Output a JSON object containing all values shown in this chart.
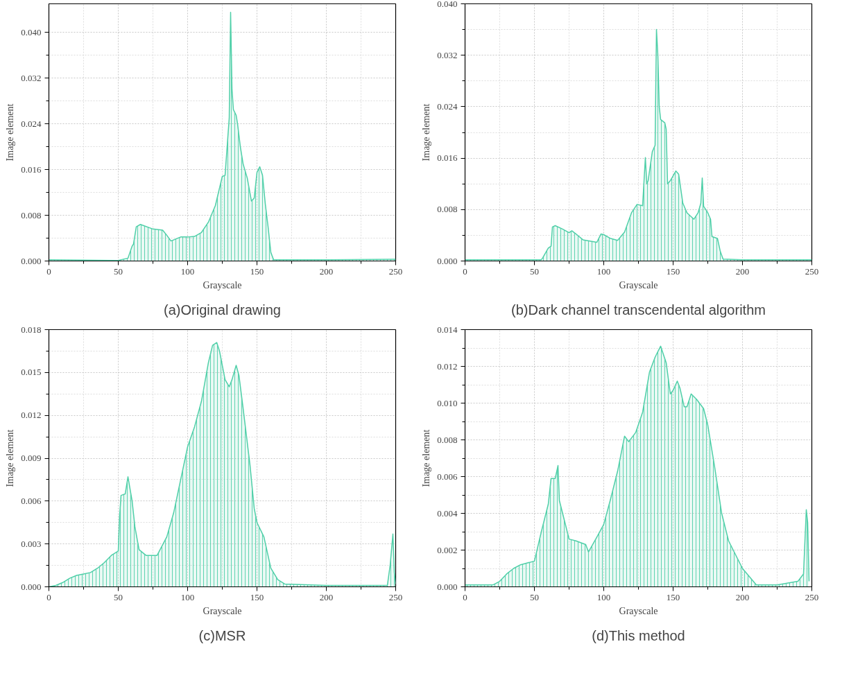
{
  "chart_data": [
    {
      "type": "area",
      "title": "(a)Original drawing",
      "xlabel": "Grayscale",
      "ylabel": "Image element",
      "color": "#4fcfa8",
      "grid": true,
      "xlim": [
        0,
        250
      ],
      "ylim": [
        0,
        0.045
      ],
      "xticks": [
        0,
        50,
        100,
        150,
        200,
        250
      ],
      "yticks": [
        {
          "value": 0.0,
          "label": "0.000"
        },
        {
          "value": 0.008,
          "label": "0.008"
        },
        {
          "value": 0.016,
          "label": "0.016"
        },
        {
          "value": 0.024,
          "label": "0.024"
        },
        {
          "value": 0.032,
          "label": "0.032"
        },
        {
          "value": 0.04,
          "label": "0.040"
        }
      ],
      "x": [
        0,
        50,
        57,
        60,
        61,
        63,
        66,
        75,
        82,
        85,
        88,
        95,
        100,
        105,
        110,
        115,
        120,
        125,
        127,
        130,
        131,
        132,
        133,
        135,
        136,
        138,
        140,
        143,
        146,
        148,
        150,
        152,
        154,
        156,
        158,
        160,
        162,
        200,
        250
      ],
      "values": [
        0.0002,
        0.0001,
        0.0005,
        0.0026,
        0.003,
        0.006,
        0.0064,
        0.0056,
        0.0054,
        0.0045,
        0.0035,
        0.0042,
        0.0042,
        0.0043,
        0.005,
        0.0068,
        0.0097,
        0.0148,
        0.015,
        0.025,
        0.0435,
        0.03,
        0.0265,
        0.0255,
        0.024,
        0.02,
        0.017,
        0.0145,
        0.0105,
        0.011,
        0.0155,
        0.0165,
        0.015,
        0.01,
        0.006,
        0.0015,
        0.0002,
        0.0002,
        0.0003
      ]
    },
    {
      "type": "area",
      "title": "(b)Dark channel transcendental algorithm",
      "xlabel": "Grayscale",
      "ylabel": "Image element",
      "color": "#4fcfa8",
      "grid": true,
      "xlim": [
        0,
        250
      ],
      "ylim": [
        0,
        0.04
      ],
      "xticks": [
        0,
        50,
        100,
        150,
        200,
        250
      ],
      "yticks": [
        {
          "value": 0.0,
          "label": "0.000"
        },
        {
          "value": 0.008,
          "label": "0.008"
        },
        {
          "value": 0.016,
          "label": "0.016"
        },
        {
          "value": 0.024,
          "label": "0.024"
        },
        {
          "value": 0.032,
          "label": "0.032"
        },
        {
          "value": 0.04,
          "label": "0.040"
        }
      ],
      "x": [
        0,
        55,
        56,
        60,
        62,
        63,
        65,
        70,
        75,
        77,
        80,
        85,
        95,
        98,
        100,
        105,
        110,
        115,
        120,
        124,
        128,
        130,
        131,
        132,
        135,
        137,
        138,
        139,
        140,
        141,
        144,
        145,
        146,
        148,
        152,
        154,
        157,
        160,
        165,
        168,
        170,
        171,
        172,
        175,
        177,
        178,
        182,
        184,
        186,
        200,
        250
      ],
      "values": [
        0.0002,
        0.0002,
        0.0005,
        0.002,
        0.0023,
        0.0053,
        0.0055,
        0.005,
        0.0044,
        0.0047,
        0.0042,
        0.0033,
        0.0029,
        0.0042,
        0.0041,
        0.0035,
        0.0032,
        0.0045,
        0.0075,
        0.0088,
        0.0086,
        0.0161,
        0.012,
        0.0125,
        0.017,
        0.018,
        0.036,
        0.032,
        0.024,
        0.022,
        0.0215,
        0.0205,
        0.012,
        0.0125,
        0.014,
        0.0135,
        0.009,
        0.0075,
        0.0065,
        0.0075,
        0.009,
        0.0129,
        0.0085,
        0.0075,
        0.0065,
        0.0038,
        0.0035,
        0.0015,
        0.0003,
        0.0002,
        0.0002
      ]
    },
    {
      "type": "area",
      "title": "(c)MSR",
      "xlabel": "Grayscale",
      "ylabel": "Image element",
      "color": "#4fcfa8",
      "grid": true,
      "xlim": [
        0,
        250
      ],
      "ylim": [
        0,
        0.018
      ],
      "xticks": [
        0,
        50,
        100,
        150,
        200,
        250
      ],
      "yticks": [
        {
          "value": 0.0,
          "label": "0.000"
        },
        {
          "value": 0.003,
          "label": "0.003"
        },
        {
          "value": 0.006,
          "label": "0.006"
        },
        {
          "value": 0.009,
          "label": "0.009"
        },
        {
          "value": 0.012,
          "label": "0.012"
        },
        {
          "value": 0.015,
          "label": "0.015"
        },
        {
          "value": 0.018,
          "label": "0.018"
        }
      ],
      "x": [
        0,
        5,
        10,
        15,
        20,
        25,
        30,
        35,
        40,
        45,
        50,
        51,
        52,
        55,
        57,
        60,
        62,
        65,
        70,
        78,
        85,
        90,
        95,
        100,
        105,
        110,
        115,
        118,
        121,
        123,
        127,
        130,
        132,
        135,
        137,
        140,
        145,
        148,
        150,
        155,
        160,
        165,
        170,
        200,
        244,
        246,
        248,
        249,
        250
      ],
      "values": [
        0,
        0.0001,
        0.0003,
        0.0006,
        0.0008,
        0.0009,
        0.001,
        0.0013,
        0.0017,
        0.0022,
        0.0025,
        0.005,
        0.0064,
        0.0065,
        0.0077,
        0.006,
        0.0042,
        0.0026,
        0.0022,
        0.0022,
        0.0035,
        0.0052,
        0.0075,
        0.0098,
        0.0112,
        0.013,
        0.0157,
        0.0169,
        0.0171,
        0.0165,
        0.0145,
        0.014,
        0.0145,
        0.0155,
        0.0148,
        0.0125,
        0.0085,
        0.0055,
        0.0045,
        0.0035,
        0.0013,
        0.0005,
        0.0002,
        0.0001,
        0.0001,
        0.0015,
        0.0037,
        0.001,
        0.0002
      ]
    },
    {
      "type": "area",
      "title": "(d)This method",
      "xlabel": "Grayscale",
      "ylabel": "Image element",
      "color": "#4fcfa8",
      "grid": true,
      "xlim": [
        0,
        250
      ],
      "ylim": [
        0,
        0.014
      ],
      "xticks": [
        0,
        50,
        100,
        150,
        200,
        250
      ],
      "yticks": [
        {
          "value": 0.0,
          "label": "0.000"
        },
        {
          "value": 0.002,
          "label": "0.002"
        },
        {
          "value": 0.004,
          "label": "0.004"
        },
        {
          "value": 0.006,
          "label": "0.006"
        },
        {
          "value": 0.008,
          "label": "0.008"
        },
        {
          "value": 0.01,
          "label": "0.010"
        },
        {
          "value": 0.012,
          "label": "0.012"
        },
        {
          "value": 0.014,
          "label": "0.014"
        }
      ],
      "x": [
        0,
        20,
        25,
        30,
        35,
        40,
        45,
        50,
        55,
        60,
        62,
        65,
        67,
        68,
        72,
        75,
        80,
        87,
        89,
        95,
        100,
        105,
        110,
        115,
        118,
        123,
        128,
        133,
        137,
        141,
        145,
        148,
        150,
        153,
        155,
        158,
        160,
        163,
        167,
        172,
        175,
        180,
        185,
        190,
        200,
        210,
        225,
        240,
        244,
        246,
        247,
        248
      ],
      "values": [
        0.0001,
        0.0001,
        0.0003,
        0.0007,
        0.001,
        0.0012,
        0.0013,
        0.0014,
        0.003,
        0.0045,
        0.0059,
        0.0059,
        0.0066,
        0.0047,
        0.0035,
        0.0026,
        0.0025,
        0.0023,
        0.0019,
        0.0027,
        0.0034,
        0.0048,
        0.0063,
        0.0082,
        0.0079,
        0.0084,
        0.0095,
        0.0117,
        0.0125,
        0.0131,
        0.0122,
        0.0105,
        0.0107,
        0.0112,
        0.0108,
        0.0098,
        0.0098,
        0.0105,
        0.0102,
        0.0097,
        0.0088,
        0.0065,
        0.004,
        0.0025,
        0.001,
        0.0001,
        0.0001,
        0.0003,
        0.0007,
        0.0042,
        0.0035,
        0.0003
      ]
    }
  ]
}
